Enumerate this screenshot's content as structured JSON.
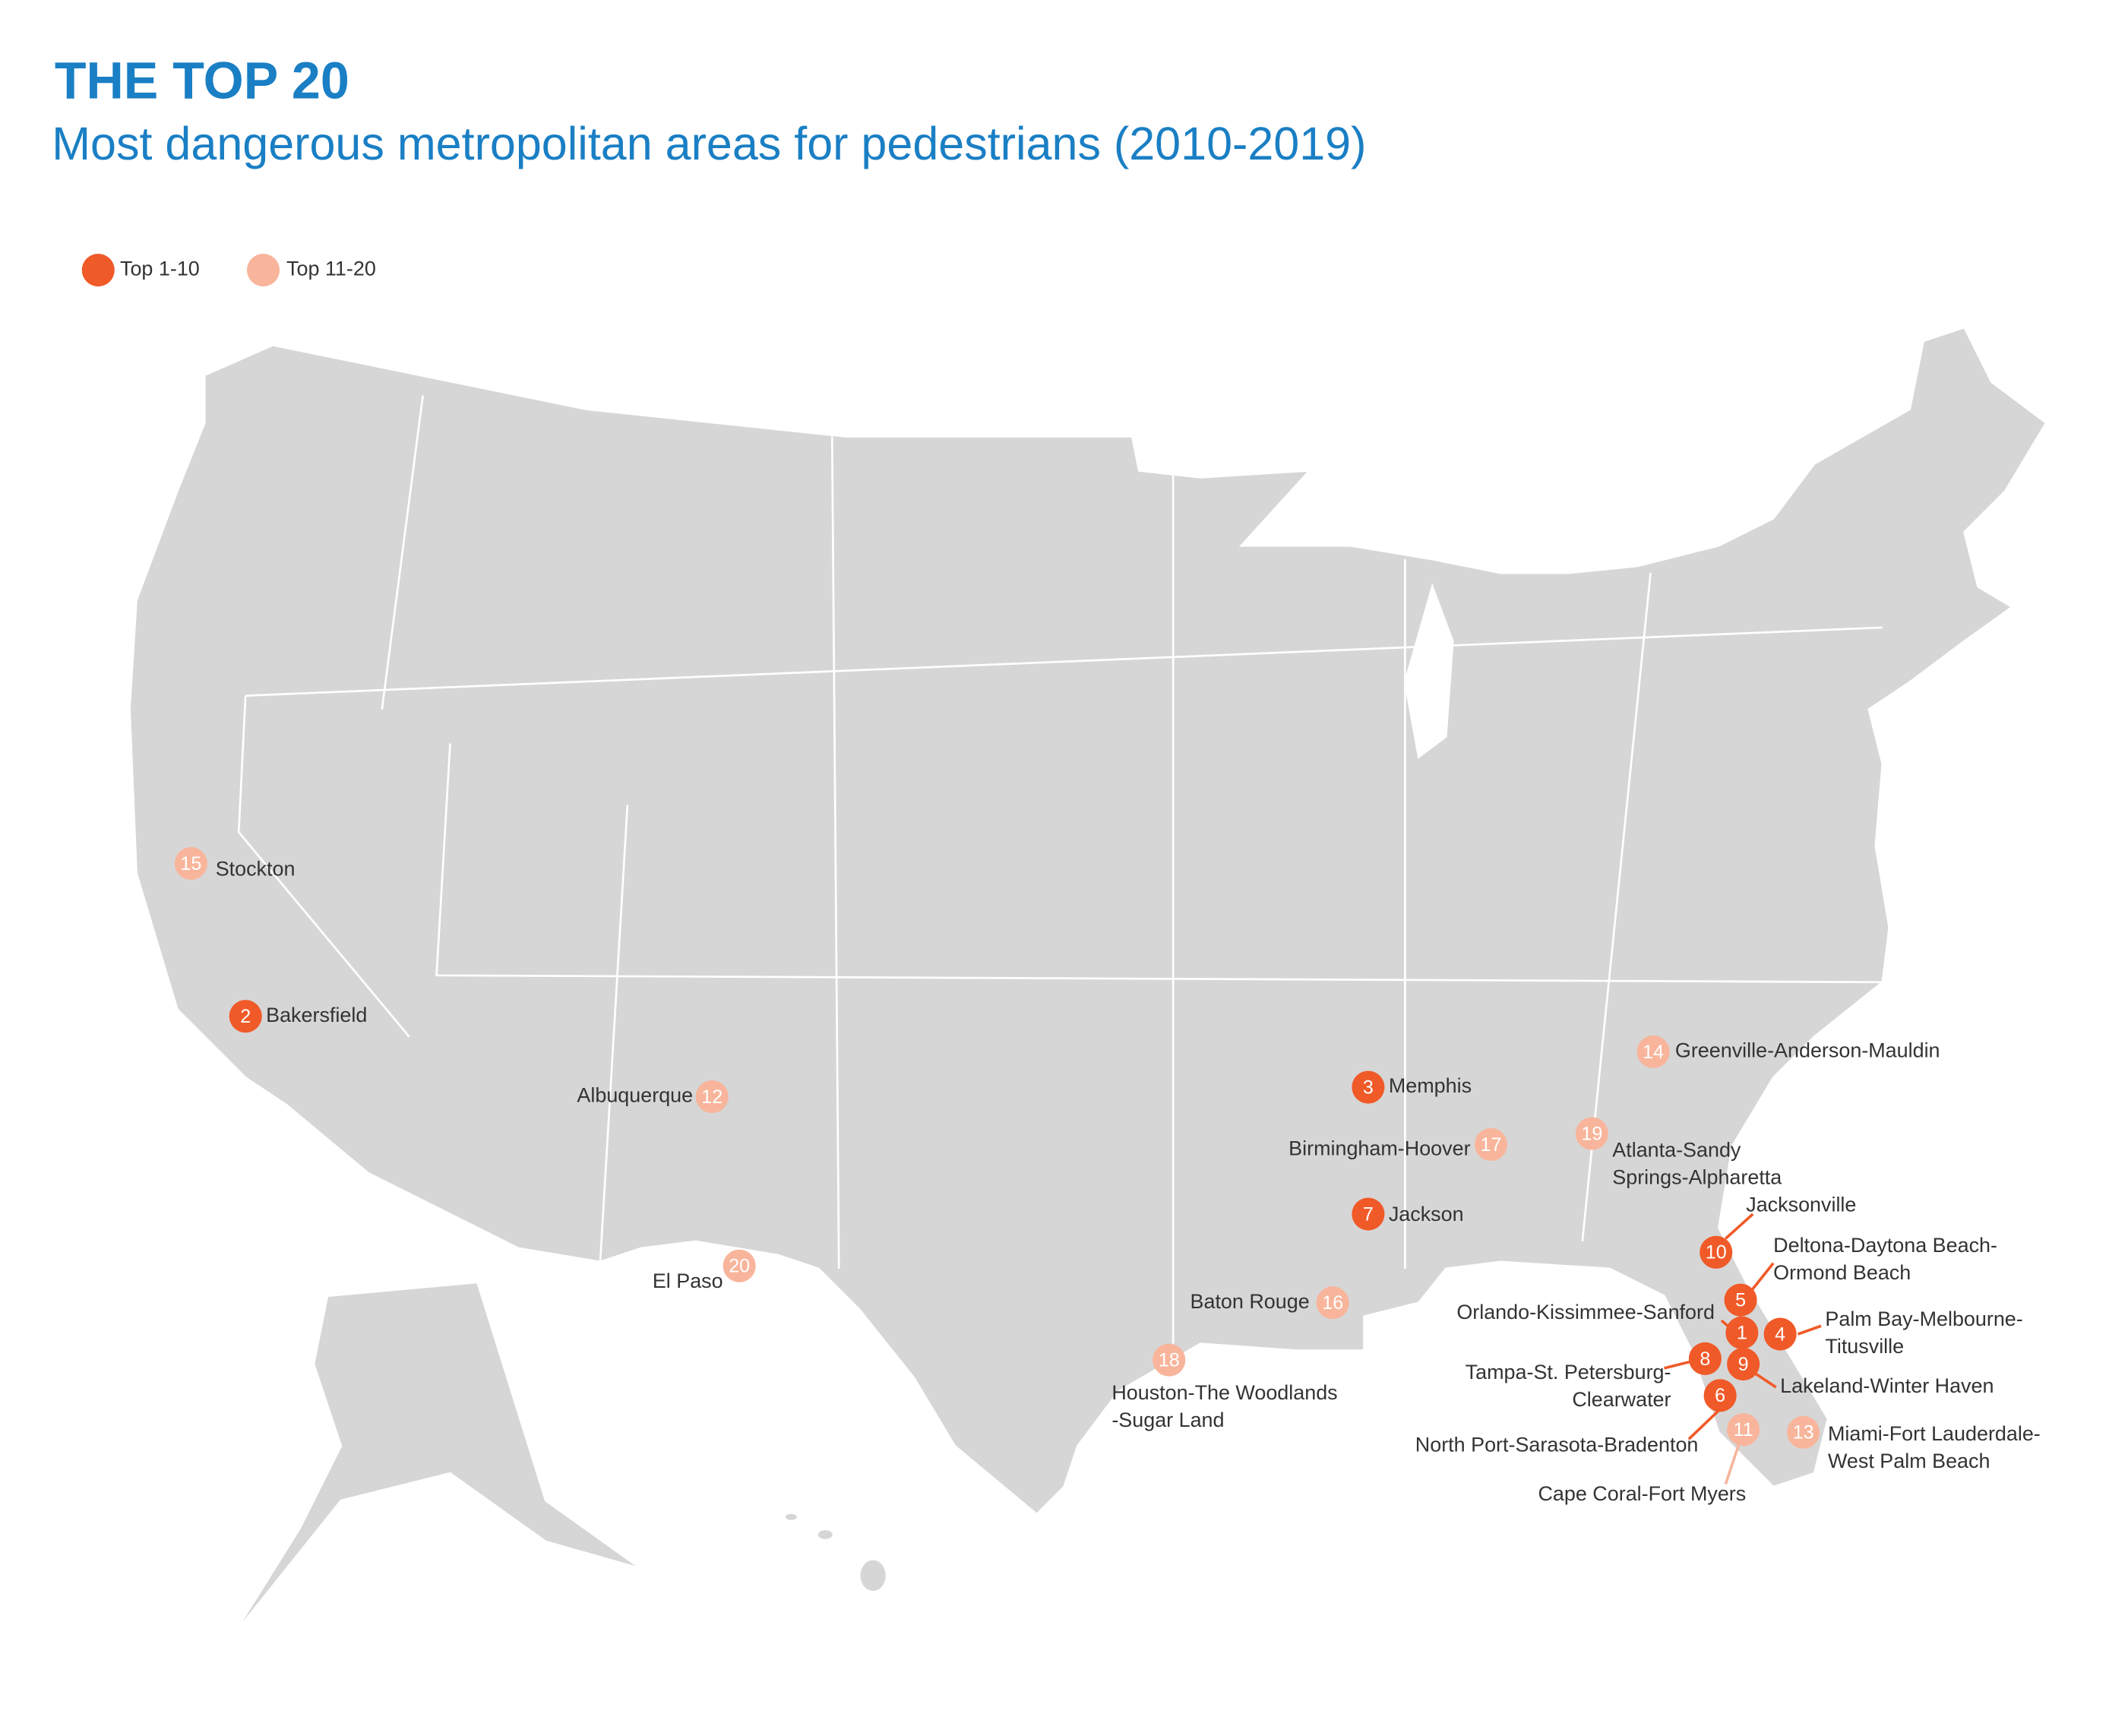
{
  "header": {
    "title": "THE TOP 20",
    "subtitle": "Most dangerous metropolitan areas for pedestrians (2010-2019)"
  },
  "legend": [
    {
      "label": "Top 1-10",
      "color": "#f05a28"
    },
    {
      "label": "Top 11-20",
      "color": "#f8b59b"
    }
  ],
  "markers": [
    {
      "rank": 1,
      "tier": 0,
      "label_lines": [
        "Orlando-Kissimmee-Sanford"
      ]
    },
    {
      "rank": 2,
      "tier": 0,
      "label_lines": [
        "Bakersfield"
      ]
    },
    {
      "rank": 3,
      "tier": 0,
      "label_lines": [
        "Memphis"
      ]
    },
    {
      "rank": 4,
      "tier": 0,
      "label_lines": [
        "Palm Bay-Melbourne-",
        "Titusville"
      ]
    },
    {
      "rank": 5,
      "tier": 0,
      "label_lines": [
        "Deltona-Daytona Beach-",
        "Ormond Beach"
      ]
    },
    {
      "rank": 6,
      "tier": 0,
      "label_lines": [
        "North Port-Sarasota-Bradenton"
      ]
    },
    {
      "rank": 7,
      "tier": 0,
      "label_lines": [
        "Jackson"
      ]
    },
    {
      "rank": 8,
      "tier": 0,
      "label_lines": [
        "Tampa-St. Petersburg-",
        "Clearwater"
      ]
    },
    {
      "rank": 9,
      "tier": 0,
      "label_lines": [
        "Lakeland-Winter Haven"
      ]
    },
    {
      "rank": 10,
      "tier": 0,
      "label_lines": [
        "Jacksonville"
      ]
    },
    {
      "rank": 11,
      "tier": 1,
      "label_lines": [
        "Cape Coral-Fort Myers"
      ]
    },
    {
      "rank": 12,
      "tier": 1,
      "label_lines": [
        "Albuquerque"
      ]
    },
    {
      "rank": 13,
      "tier": 1,
      "label_lines": [
        "Miami-Fort Lauderdale-",
        "West Palm Beach"
      ]
    },
    {
      "rank": 14,
      "tier": 1,
      "label_lines": [
        "Greenville-Anderson-Mauldin"
      ]
    },
    {
      "rank": 15,
      "tier": 1,
      "label_lines": [
        "Stockton"
      ]
    },
    {
      "rank": 16,
      "tier": 1,
      "label_lines": [
        "Baton Rouge"
      ]
    },
    {
      "rank": 17,
      "tier": 1,
      "label_lines": [
        "Birmingham-Hoover"
      ]
    },
    {
      "rank": 18,
      "tier": 1,
      "label_lines": [
        "Houston-The Woodlands",
        "-Sugar Land"
      ]
    },
    {
      "rank": 19,
      "tier": 1,
      "label_lines": [
        "Atlanta-Sandy",
        "Springs-Alpharetta"
      ]
    },
    {
      "rank": 20,
      "tier": 1,
      "label_lines": [
        "El Paso"
      ]
    }
  ]
}
